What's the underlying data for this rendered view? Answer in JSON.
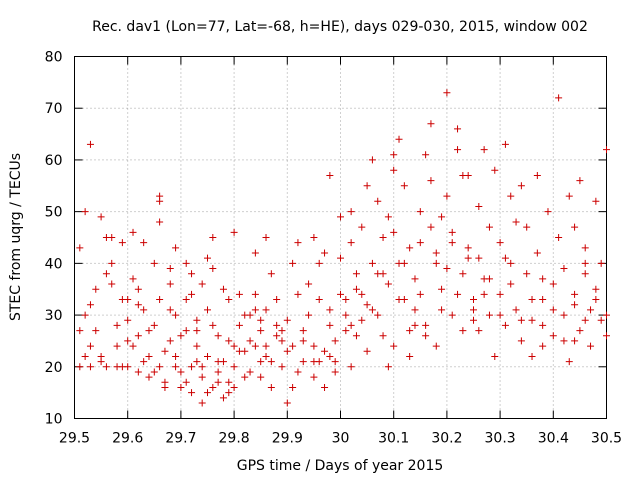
{
  "chart_data": {
    "type": "scatter",
    "title": "Rec. dav1 (Lon=77, Lat=-68, h=HE), days 029-030, 2015, window 002",
    "xlabel": "GPS time / Days of year 2015",
    "ylabel": "STEC from uqrg / TECUs",
    "xlim": [
      29.5,
      30.5
    ],
    "ylim": [
      10,
      80
    ],
    "xticks": [
      "29.5",
      "29.6",
      "29.7",
      "29.8",
      "29.9",
      "30",
      "30.1",
      "30.2",
      "30.3",
      "30.4",
      "30.5"
    ],
    "yticks": [
      "10",
      "20",
      "30",
      "40",
      "50",
      "60",
      "70",
      "80"
    ],
    "grid": true,
    "marker": "+",
    "series": [
      {
        "color": "#cc0000",
        "points": [
          [
            29.51,
            43
          ],
          [
            29.51,
            27
          ],
          [
            29.51,
            20
          ],
          [
            29.52,
            30
          ],
          [
            29.52,
            50
          ],
          [
            29.53,
            63
          ],
          [
            29.53,
            32
          ],
          [
            29.53,
            24
          ],
          [
            29.53,
            20
          ],
          [
            29.54,
            27
          ],
          [
            29.55,
            49
          ],
          [
            29.55,
            22
          ],
          [
            29.56,
            45
          ],
          [
            29.56,
            38
          ],
          [
            29.56,
            20
          ],
          [
            29.57,
            45
          ],
          [
            29.57,
            36
          ],
          [
            29.58,
            28
          ],
          [
            29.58,
            20
          ],
          [
            29.59,
            44
          ],
          [
            29.59,
            33
          ],
          [
            29.59,
            20
          ],
          [
            29.6,
            29
          ],
          [
            29.6,
            20
          ],
          [
            29.61,
            46
          ],
          [
            29.61,
            37
          ],
          [
            29.61,
            24
          ],
          [
            29.62,
            35
          ],
          [
            29.62,
            26
          ],
          [
            29.62,
            19
          ],
          [
            29.63,
            44
          ],
          [
            29.63,
            31
          ],
          [
            29.64,
            22
          ],
          [
            29.64,
            18
          ],
          [
            29.65,
            40
          ],
          [
            29.65,
            28
          ],
          [
            29.66,
            48
          ],
          [
            29.66,
            52
          ],
          [
            29.66,
            53
          ],
          [
            29.66,
            33
          ],
          [
            29.66,
            20
          ],
          [
            29.67,
            17
          ],
          [
            29.68,
            39
          ],
          [
            29.68,
            36
          ],
          [
            29.68,
            25
          ],
          [
            29.69,
            30
          ],
          [
            29.69,
            22
          ],
          [
            29.7,
            16
          ],
          [
            29.71,
            40
          ],
          [
            29.71,
            33
          ],
          [
            29.71,
            27
          ],
          [
            29.72,
            38
          ],
          [
            29.72,
            20
          ],
          [
            29.73,
            29
          ],
          [
            29.73,
            24
          ],
          [
            29.74,
            36
          ],
          [
            29.74,
            18
          ],
          [
            29.75,
            41
          ],
          [
            29.75,
            31
          ],
          [
            29.75,
            22
          ],
          [
            29.76,
            39
          ],
          [
            29.76,
            28
          ],
          [
            29.77,
            26
          ],
          [
            29.77,
            17
          ],
          [
            29.78,
            35
          ],
          [
            29.78,
            21
          ],
          [
            29.79,
            33
          ],
          [
            29.79,
            25
          ],
          [
            29.8,
            20
          ],
          [
            29.8,
            16
          ],
          [
            29.81,
            34
          ],
          [
            29.81,
            28
          ],
          [
            29.82,
            23
          ],
          [
            29.83,
            19
          ],
          [
            29.83,
            30
          ],
          [
            29.84,
            34
          ],
          [
            29.84,
            24
          ],
          [
            29.85,
            27
          ],
          [
            29.85,
            18
          ],
          [
            29.86,
            31
          ],
          [
            29.86,
            22
          ],
          [
            29.87,
            16
          ],
          [
            29.88,
            33
          ],
          [
            29.88,
            26
          ],
          [
            29.89,
            20
          ],
          [
            29.9,
            29
          ],
          [
            29.9,
            23
          ],
          [
            29.91,
            16
          ],
          [
            29.92,
            34
          ],
          [
            29.92,
            19
          ],
          [
            29.93,
            27
          ],
          [
            29.93,
            21
          ],
          [
            29.94,
            30
          ],
          [
            29.95,
            24
          ],
          [
            29.95,
            18
          ],
          [
            29.96,
            33
          ],
          [
            29.96,
            21
          ],
          [
            29.97,
            16
          ],
          [
            29.98,
            28
          ],
          [
            29.98,
            22
          ],
          [
            29.99,
            19
          ],
          [
            29.97,
            42
          ],
          [
            29.94,
            36
          ],
          [
            29.91,
            40
          ],
          [
            29.87,
            38
          ],
          [
            29.86,
            45
          ],
          [
            29.84,
            31
          ],
          [
            29.8,
            46
          ],
          [
            29.76,
            45
          ],
          [
            29.72,
            34
          ],
          [
            29.69,
            43
          ],
          [
            29.68,
            31
          ],
          [
            29.74,
            20
          ],
          [
            29.78,
            14
          ],
          [
            29.79,
            15
          ],
          [
            29.82,
            30
          ],
          [
            29.9,
            13
          ],
          [
            29.7,
            26
          ],
          [
            29.72,
            15
          ],
          [
            29.74,
            13
          ],
          [
            29.76,
            16
          ],
          [
            29.82,
            18
          ],
          [
            29.84,
            42
          ],
          [
            29.86,
            24
          ],
          [
            29.88,
            28
          ],
          [
            29.92,
            44
          ],
          [
            29.95,
            45
          ],
          [
            29.96,
            40
          ],
          [
            29.98,
            57
          ],
          [
            29.99,
            25
          ],
          [
            30.0,
            49
          ],
          [
            30.0,
            41
          ],
          [
            30.0,
            34
          ],
          [
            30.01,
            30
          ],
          [
            30.01,
            27
          ],
          [
            30.02,
            50
          ],
          [
            30.02,
            44
          ],
          [
            30.02,
            20
          ],
          [
            30.03,
            38
          ],
          [
            30.03,
            35
          ],
          [
            30.04,
            47
          ],
          [
            30.04,
            29
          ],
          [
            30.05,
            55
          ],
          [
            30.05,
            23
          ],
          [
            30.06,
            40
          ],
          [
            30.06,
            60
          ],
          [
            30.07,
            52
          ],
          [
            30.07,
            30
          ],
          [
            30.08,
            45
          ],
          [
            30.08,
            26
          ],
          [
            30.09,
            36
          ],
          [
            30.09,
            20
          ],
          [
            30.1,
            61
          ],
          [
            30.1,
            58
          ],
          [
            30.1,
            46
          ],
          [
            30.11,
            64
          ],
          [
            30.11,
            33
          ],
          [
            30.12,
            55
          ],
          [
            30.12,
            40
          ],
          [
            30.13,
            27
          ],
          [
            30.13,
            22
          ],
          [
            30.14,
            37
          ],
          [
            30.14,
            31
          ],
          [
            30.15,
            50
          ],
          [
            30.15,
            44
          ],
          [
            30.16,
            61
          ],
          [
            30.16,
            28
          ],
          [
            30.17,
            67
          ],
          [
            30.17,
            56
          ],
          [
            30.18,
            42
          ],
          [
            30.18,
            24
          ],
          [
            30.19,
            49
          ],
          [
            30.19,
            35
          ],
          [
            30.2,
            73
          ],
          [
            30.2,
            53
          ],
          [
            30.21,
            30
          ],
          [
            30.21,
            46
          ],
          [
            30.22,
            66
          ],
          [
            30.22,
            62
          ],
          [
            30.23,
            38
          ],
          [
            30.23,
            27
          ],
          [
            30.24,
            57
          ],
          [
            30.24,
            43
          ],
          [
            30.25,
            33
          ],
          [
            30.25,
            29
          ],
          [
            30.26,
            51
          ],
          [
            30.26,
            41
          ],
          [
            30.27,
            62
          ],
          [
            30.27,
            37
          ],
          [
            30.28,
            47
          ],
          [
            30.28,
            30
          ],
          [
            30.29,
            58
          ],
          [
            30.29,
            22
          ],
          [
            30.3,
            44
          ],
          [
            30.3,
            34
          ],
          [
            30.31,
            63
          ],
          [
            30.31,
            28
          ],
          [
            30.32,
            53
          ],
          [
            30.32,
            40
          ],
          [
            30.33,
            31
          ],
          [
            30.34,
            55
          ],
          [
            30.34,
            25
          ],
          [
            30.35,
            47
          ],
          [
            30.35,
            38
          ],
          [
            30.36,
            29
          ],
          [
            30.37,
            57
          ],
          [
            30.37,
            42
          ],
          [
            30.38,
            33
          ],
          [
            30.38,
            24
          ],
          [
            30.39,
            50
          ],
          [
            30.4,
            36
          ],
          [
            30.4,
            26
          ],
          [
            30.41,
            72
          ],
          [
            30.41,
            45
          ],
          [
            30.42,
            39
          ],
          [
            30.42,
            30
          ],
          [
            30.43,
            53
          ],
          [
            30.43,
            21
          ],
          [
            30.44,
            47
          ],
          [
            30.44,
            34
          ],
          [
            30.45,
            56
          ],
          [
            30.45,
            27
          ],
          [
            30.46,
            43
          ],
          [
            30.46,
            38
          ],
          [
            30.47,
            31
          ],
          [
            30.47,
            24
          ],
          [
            30.48,
            52
          ],
          [
            30.48,
            35
          ],
          [
            30.49,
            40
          ],
          [
            30.49,
            29
          ],
          [
            30.5,
            62
          ],
          [
            30.5,
            26
          ],
          [
            30.46,
            40
          ],
          [
            30.44,
            25
          ],
          [
            30.38,
            37
          ],
          [
            30.36,
            33
          ],
          [
            30.33,
            48
          ],
          [
            30.31,
            41
          ],
          [
            30.27,
            34
          ],
          [
            30.25,
            31
          ],
          [
            30.23,
            57
          ],
          [
            30.21,
            44
          ],
          [
            30.19,
            31
          ],
          [
            30.17,
            47
          ],
          [
            30.15,
            34
          ],
          [
            30.13,
            43
          ],
          [
            30.11,
            40
          ],
          [
            30.09,
            49
          ],
          [
            30.07,
            38
          ],
          [
            30.05,
            32
          ],
          [
            30.03,
            26
          ],
          [
            30.01,
            33
          ],
          [
            29.99,
            21
          ],
          [
            29.98,
            31
          ],
          [
            29.89,
            25
          ],
          [
            29.85,
            21
          ],
          [
            29.8,
            24
          ],
          [
            29.77,
            21
          ],
          [
            29.73,
            27
          ],
          [
            29.7,
            19
          ],
          [
            29.67,
            23
          ],
          [
            29.64,
            27
          ],
          [
            29.62,
            32
          ],
          [
            29.6,
            33
          ],
          [
            29.58,
            24
          ],
          [
            29.57,
            40
          ],
          [
            29.55,
            21
          ],
          [
            29.54,
            35
          ],
          [
            29.52,
            22
          ],
          [
            29.6,
            25
          ],
          [
            29.63,
            21
          ],
          [
            29.65,
            19
          ],
          [
            29.67,
            16
          ],
          [
            29.69,
            20
          ],
          [
            29.71,
            17
          ],
          [
            29.73,
            21
          ],
          [
            29.75,
            15
          ],
          [
            29.77,
            19
          ],
          [
            29.79,
            17
          ],
          [
            29.81,
            23
          ],
          [
            29.83,
            25
          ],
          [
            29.85,
            29
          ],
          [
            29.87,
            21
          ],
          [
            29.89,
            27
          ],
          [
            29.91,
            24
          ],
          [
            29.93,
            25
          ],
          [
            29.95,
            21
          ],
          [
            29.97,
            23
          ],
          [
            30.02,
            28
          ],
          [
            30.04,
            34
          ],
          [
            30.06,
            31
          ],
          [
            30.08,
            38
          ],
          [
            30.1,
            24
          ],
          [
            30.12,
            33
          ],
          [
            30.14,
            28
          ],
          [
            30.16,
            26
          ],
          [
            30.18,
            40
          ],
          [
            30.2,
            39
          ],
          [
            30.22,
            34
          ],
          [
            30.24,
            41
          ],
          [
            30.26,
            27
          ],
          [
            30.28,
            37
          ],
          [
            30.3,
            30
          ],
          [
            30.32,
            36
          ],
          [
            30.34,
            29
          ],
          [
            30.36,
            22
          ],
          [
            30.38,
            28
          ],
          [
            30.4,
            31
          ],
          [
            30.42,
            25
          ],
          [
            30.44,
            32
          ],
          [
            30.46,
            29
          ],
          [
            30.48,
            33
          ],
          [
            30.5,
            30
          ]
        ]
      }
    ]
  }
}
